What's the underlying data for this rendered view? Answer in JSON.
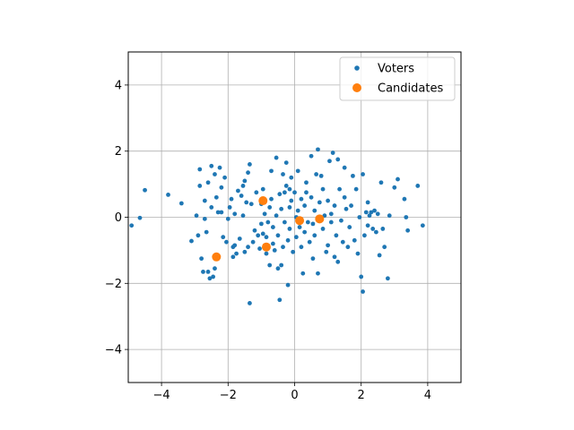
{
  "chart_data": {
    "type": "scatter",
    "xlim": [
      -5,
      5
    ],
    "ylim": [
      -5,
      5
    ],
    "x_ticks": [
      -4,
      -2,
      0,
      2,
      4
    ],
    "y_ticks": [
      -4,
      -2,
      0,
      2,
      4
    ],
    "x_tick_labels": [
      "−4",
      "−2",
      "0",
      "2",
      "4"
    ],
    "y_tick_labels": [
      "−4",
      "−2",
      "0",
      "2",
      "4"
    ],
    "grid": true,
    "legend_position": "top-right",
    "series": [
      {
        "name": "Voters",
        "color": "#1f77b4",
        "marker": "small-circle",
        "points": [
          [
            -4.9,
            -0.25
          ],
          [
            -4.65,
            -0.02
          ],
          [
            -4.5,
            0.82
          ],
          [
            -3.8,
            0.68
          ],
          [
            -3.4,
            0.42
          ],
          [
            -3.1,
            -0.72
          ],
          [
            -2.95,
            0.05
          ],
          [
            -2.9,
            -0.55
          ],
          [
            -2.85,
            1.45
          ],
          [
            -2.85,
            0.95
          ],
          [
            -2.8,
            -1.25
          ],
          [
            -2.75,
            -1.65
          ],
          [
            -2.7,
            0.5
          ],
          [
            -2.7,
            -0.05
          ],
          [
            -2.65,
            -0.45
          ],
          [
            -2.6,
            1.05
          ],
          [
            -2.6,
            -1.65
          ],
          [
            -2.55,
            -1.85
          ],
          [
            -2.5,
            1.55
          ],
          [
            -2.5,
            0.3
          ],
          [
            -2.45,
            -1.8
          ],
          [
            -2.4,
            1.3
          ],
          [
            -2.4,
            -1.55
          ],
          [
            -2.35,
            0.6
          ],
          [
            -2.3,
            0.15
          ],
          [
            -2.25,
            1.5
          ],
          [
            -2.2,
            0.9
          ],
          [
            -2.2,
            0.15
          ],
          [
            -2.1,
            1.2
          ],
          [
            -2.05,
            -0.75
          ],
          [
            -2.0,
            -0.05
          ],
          [
            -1.95,
            0.3
          ],
          [
            -1.9,
            0.55
          ],
          [
            -1.85,
            -0.9
          ],
          [
            -1.85,
            -1.2
          ],
          [
            -1.8,
            -0.85
          ],
          [
            -1.8,
            0.1
          ],
          [
            -1.75,
            -1.1
          ],
          [
            -1.7,
            0.8
          ],
          [
            -1.65,
            -0.65
          ],
          [
            -1.6,
            0.65
          ],
          [
            -1.55,
            0.95
          ],
          [
            -1.5,
            1.1
          ],
          [
            -1.5,
            -1.05
          ],
          [
            -1.45,
            0.45
          ],
          [
            -1.4,
            1.35
          ],
          [
            -1.4,
            -0.9
          ],
          [
            -1.35,
            1.6
          ],
          [
            -1.35,
            -2.6
          ],
          [
            -1.3,
            0.4
          ],
          [
            -1.2,
            -0.4
          ],
          [
            -1.15,
            0.75
          ],
          [
            -1.1,
            -0.55
          ],
          [
            -1.05,
            -0.95
          ],
          [
            -1.0,
            0.4
          ],
          [
            -1.0,
            -0.2
          ],
          [
            -0.95,
            0.85
          ],
          [
            -0.9,
            0.1
          ],
          [
            -0.85,
            -0.6
          ],
          [
            -0.85,
            -1.1
          ],
          [
            -0.8,
            -0.15
          ],
          [
            -0.75,
            0.3
          ],
          [
            -0.75,
            -1.45
          ],
          [
            -0.7,
            1.4
          ],
          [
            -0.7,
            0.55
          ],
          [
            -0.65,
            -0.3
          ],
          [
            -0.6,
            -1.0
          ],
          [
            -0.55,
            1.8
          ],
          [
            -0.55,
            0.05
          ],
          [
            -0.5,
            -0.55
          ],
          [
            -0.5,
            -1.55
          ],
          [
            -0.45,
            0.7
          ],
          [
            -0.45,
            -2.5
          ],
          [
            -0.4,
            0.25
          ],
          [
            -0.4,
            -1.45
          ],
          [
            -0.35,
            1.3
          ],
          [
            -0.35,
            -0.9
          ],
          [
            -0.3,
            0.75
          ],
          [
            -0.3,
            -0.15
          ],
          [
            -0.25,
            1.65
          ],
          [
            -0.25,
            0.95
          ],
          [
            -0.2,
            -0.7
          ],
          [
            -0.2,
            -2.05
          ],
          [
            -0.15,
            0.3
          ],
          [
            -0.15,
            -0.35
          ],
          [
            -0.1,
            1.2
          ],
          [
            -0.1,
            0.5
          ],
          [
            -0.05,
            -1.05
          ],
          [
            0.0,
            0.75
          ],
          [
            0.05,
            0.0
          ],
          [
            0.05,
            -0.6
          ],
          [
            0.1,
            1.4
          ],
          [
            0.1,
            0.2
          ],
          [
            0.15,
            -0.3
          ],
          [
            0.2,
            0.55
          ],
          [
            0.2,
            -0.9
          ],
          [
            0.25,
            -1.7
          ],
          [
            0.3,
            0.35
          ],
          [
            0.3,
            -0.45
          ],
          [
            0.35,
            1.05
          ],
          [
            0.4,
            -0.15
          ],
          [
            0.45,
            -0.75
          ],
          [
            0.5,
            1.85
          ],
          [
            0.5,
            0.6
          ],
          [
            0.55,
            -1.25
          ],
          [
            0.6,
            0.2
          ],
          [
            0.6,
            -0.55
          ],
          [
            0.65,
            1.3
          ],
          [
            0.7,
            2.05
          ],
          [
            0.7,
            -1.7
          ],
          [
            0.75,
            0.45
          ],
          [
            0.8,
            1.25
          ],
          [
            0.85,
            -0.35
          ],
          [
            0.85,
            0.85
          ],
          [
            0.9,
            0.05
          ],
          [
            0.95,
            -1.05
          ],
          [
            1.0,
            0.5
          ],
          [
            1.05,
            1.7
          ],
          [
            1.1,
            -0.15
          ],
          [
            1.15,
            1.95
          ],
          [
            1.2,
            -1.2
          ],
          [
            1.2,
            0.35
          ],
          [
            1.25,
            -0.55
          ],
          [
            1.3,
            -1.35
          ],
          [
            1.3,
            1.75
          ],
          [
            1.35,
            0.85
          ],
          [
            1.4,
            -0.1
          ],
          [
            1.45,
            -0.75
          ],
          [
            1.5,
            1.5
          ],
          [
            1.55,
            0.25
          ],
          [
            1.6,
            -0.9
          ],
          [
            1.65,
            -0.3
          ],
          [
            1.7,
            0.35
          ],
          [
            1.75,
            1.25
          ],
          [
            1.8,
            -0.7
          ],
          [
            1.85,
            0.85
          ],
          [
            1.9,
            -1.1
          ],
          [
            1.95,
            0.0
          ],
          [
            2.0,
            -1.8
          ],
          [
            2.05,
            -2.25
          ],
          [
            2.05,
            1.3
          ],
          [
            2.1,
            -0.55
          ],
          [
            2.15,
            0.15
          ],
          [
            2.2,
            -0.25
          ],
          [
            2.25,
            0.05
          ],
          [
            2.3,
            0.15
          ],
          [
            2.35,
            -0.35
          ],
          [
            2.4,
            0.2
          ],
          [
            2.45,
            -0.45
          ],
          [
            2.5,
            0.1
          ],
          [
            2.55,
            -1.15
          ],
          [
            2.6,
            1.05
          ],
          [
            2.65,
            -0.35
          ],
          [
            2.7,
            -0.9
          ],
          [
            2.8,
            -1.85
          ],
          [
            2.85,
            0.05
          ],
          [
            3.0,
            0.9
          ],
          [
            3.1,
            1.15
          ],
          [
            3.3,
            0.55
          ],
          [
            3.35,
            0.0
          ],
          [
            3.4,
            -0.4
          ],
          [
            3.7,
            0.95
          ],
          [
            3.85,
            -0.25
          ],
          [
            -1.25,
            -0.75
          ],
          [
            -0.95,
            -0.5
          ],
          [
            0.55,
            -0.2
          ],
          [
            1.0,
            -0.85
          ],
          [
            1.5,
            0.6
          ],
          [
            -2.15,
            -0.6
          ],
          [
            -0.65,
            -0.8
          ],
          [
            0.35,
            0.75
          ],
          [
            1.1,
            0.1
          ],
          [
            -1.55,
            0.05
          ],
          [
            0.75,
            -0.05
          ],
          [
            -0.15,
            0.85
          ],
          [
            2.2,
            0.45
          ]
        ]
      },
      {
        "name": "Candidates",
        "color": "#ff7f0e",
        "marker": "large-circle",
        "points": [
          [
            -2.35,
            -1.2
          ],
          [
            -0.95,
            0.5
          ],
          [
            -0.85,
            -0.9
          ],
          [
            0.15,
            -0.1
          ],
          [
            0.75,
            -0.05
          ]
        ]
      }
    ]
  }
}
